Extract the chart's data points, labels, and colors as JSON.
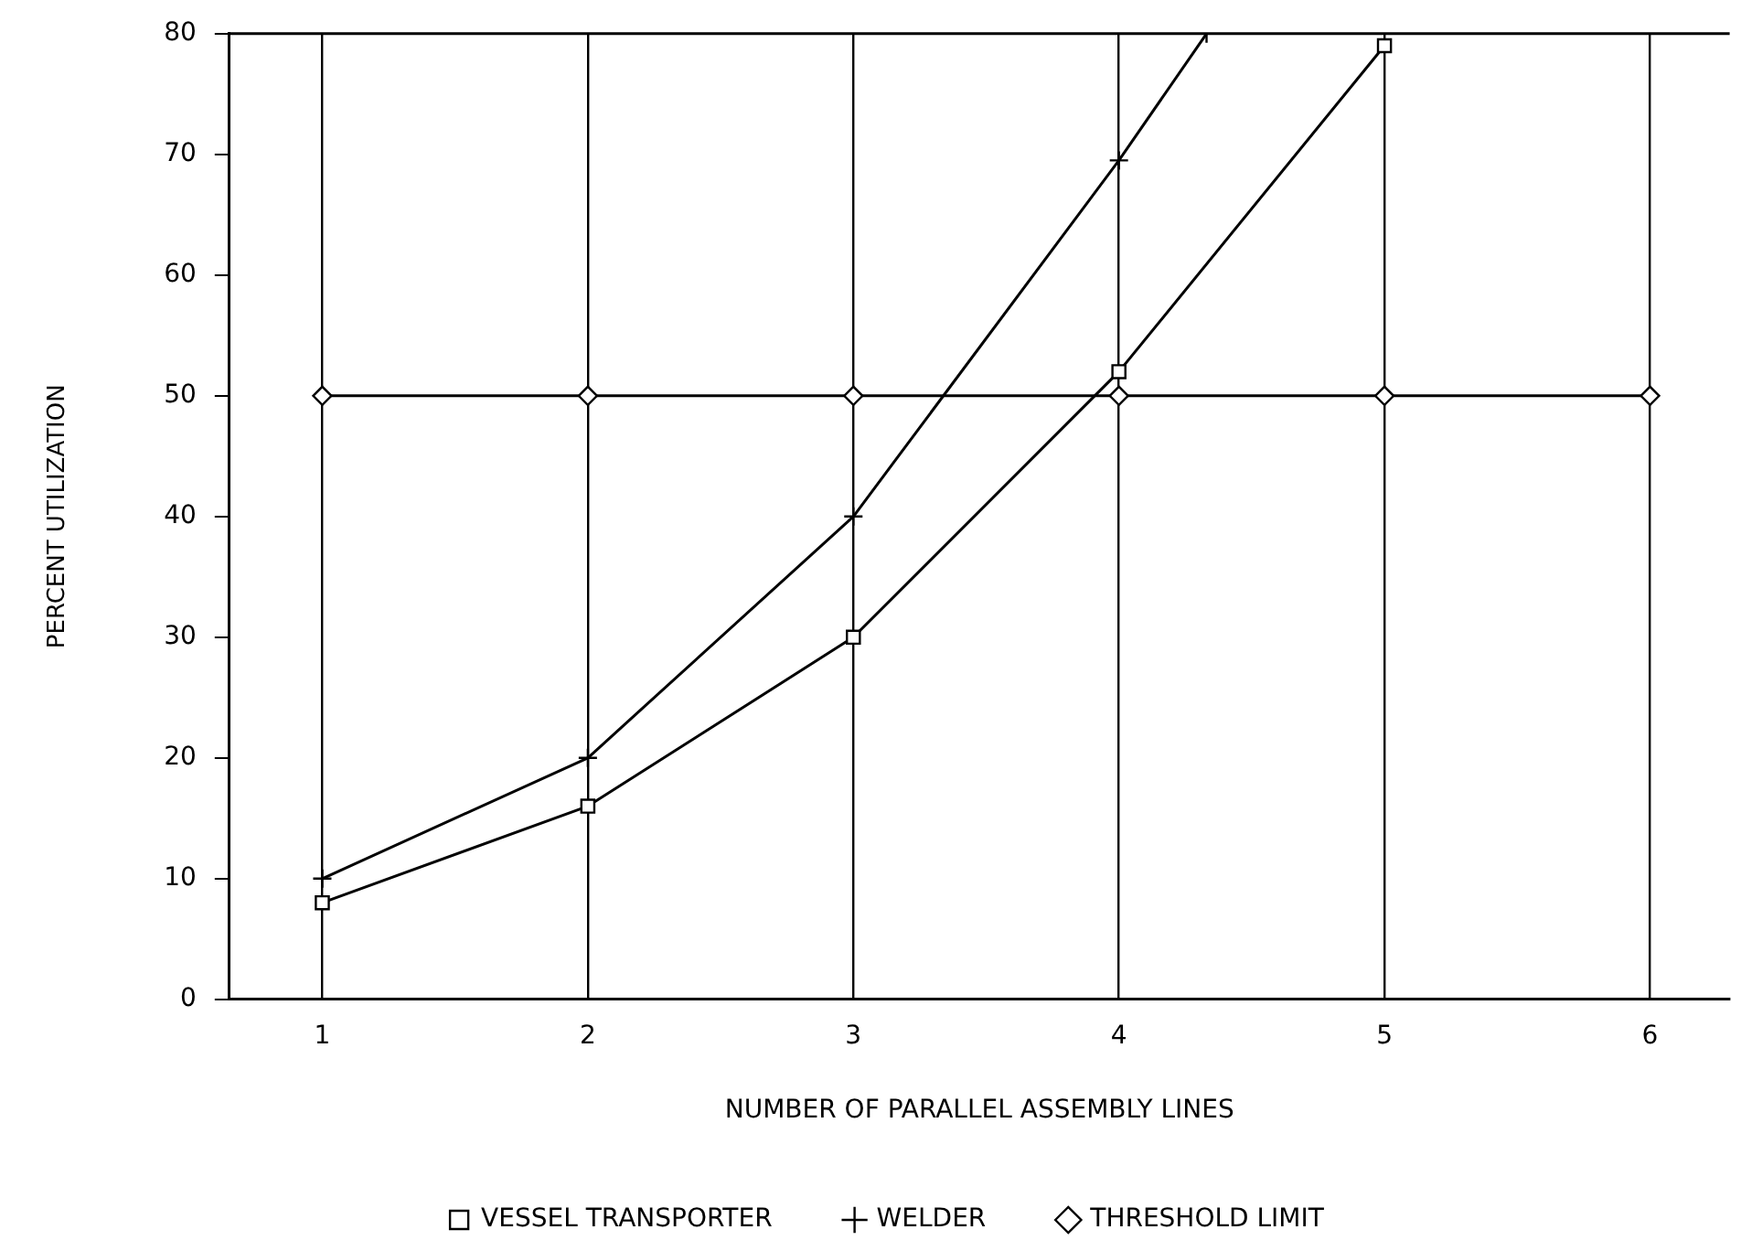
{
  "chart_data": {
    "type": "line",
    "xlabel": "NUMBER OF PARALLEL ASSEMBLY LINES",
    "ylabel": "PERCENT UTILIZATION",
    "series": [
      {
        "name": "VESSEL TRANSPORTER",
        "color": "#000000",
        "marker": "square",
        "x": [
          1,
          2,
          3,
          4,
          5
        ],
        "values": [
          8,
          16,
          30,
          52,
          79
        ]
      },
      {
        "name": "WELDER",
        "color": "#000000",
        "marker": "cross",
        "x": [
          1,
          2,
          3,
          4,
          4.33
        ],
        "values": [
          10,
          20,
          40,
          69.5,
          80
        ]
      },
      {
        "name": "THRESHOLD LIMIT",
        "color": "#000000",
        "marker": "diamond",
        "x": [
          1,
          2,
          3,
          4,
          5,
          6
        ],
        "values": [
          50,
          50,
          50,
          50,
          50,
          50
        ]
      }
    ],
    "xlim": [
      0.65,
      6.3
    ],
    "xticks": [
      1,
      2,
      3,
      4,
      5,
      6
    ],
    "ylim": [
      0,
      80
    ],
    "yticks": [
      0,
      10,
      20,
      30,
      40,
      50,
      60,
      70,
      80
    ],
    "grid": "x",
    "legend": "bottom",
    "line_style": "solid"
  }
}
